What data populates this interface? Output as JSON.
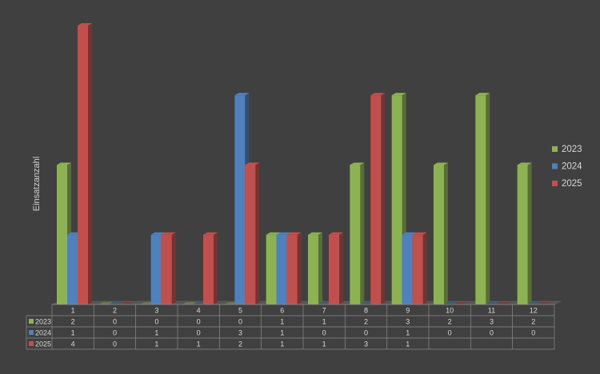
{
  "chart_data": {
    "type": "bar",
    "ylabel": "Einsatzanzahl",
    "xlabel": "",
    "title": "",
    "categories": [
      "1",
      "2",
      "3",
      "4",
      "5",
      "6",
      "7",
      "8",
      "9",
      "10",
      "11",
      "12"
    ],
    "ylim": [
      0,
      4
    ],
    "grid": false,
    "legend_position": "right",
    "series": [
      {
        "name": "2023",
        "color": "#8DB254",
        "values": [
          2,
          0,
          0,
          0,
          0,
          1,
          1,
          2,
          3,
          2,
          3,
          2
        ],
        "table_values": [
          "2",
          "0",
          "0",
          "0",
          "0",
          "1",
          "1",
          "2",
          "3",
          "2",
          "3",
          "2"
        ]
      },
      {
        "name": "2024",
        "color": "#4F81BD",
        "values": [
          1,
          0,
          1,
          0,
          3,
          1,
          0,
          0,
          1,
          0,
          0,
          0
        ],
        "table_values": [
          "1",
          "0",
          "1",
          "0",
          "3",
          "1",
          "0",
          "0",
          "1",
          "0",
          "0",
          "0"
        ]
      },
      {
        "name": "2025",
        "color": "#C0504D",
        "values": [
          4,
          0,
          1,
          1,
          2,
          1,
          1,
          3,
          1,
          0,
          0,
          0
        ],
        "table_values": [
          "4",
          "0",
          "1",
          "1",
          "2",
          "1",
          "1",
          "3",
          "1",
          "",
          "",
          ""
        ]
      }
    ]
  }
}
